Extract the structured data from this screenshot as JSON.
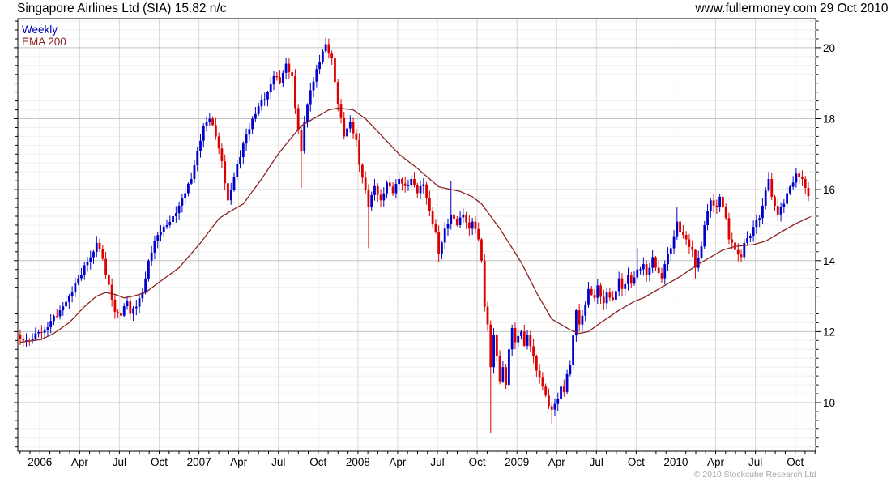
{
  "header": {
    "title": "Singapore Airlines Ltd (SIA) 15.82 n/c",
    "website": "www.fullermoney.com",
    "date": "29 Oct 2010"
  },
  "legend": [
    {
      "label": "Weekly",
      "color": "#0000bb"
    },
    {
      "label": "EMA 200",
      "color": "#8b2222"
    }
  ],
  "footer": {
    "copyright": "© 2010 Stockcube Research Ltd"
  },
  "chart_data": {
    "type": "candlestick",
    "title": "Singapore Airlines Ltd (SIA)",
    "last_price": 15.82,
    "change": "n/c",
    "frequency": "Weekly",
    "overlay": "EMA 200",
    "as_of": "29 Oct 2010",
    "x_axis": {
      "labels": [
        "2006",
        "Apr",
        "Jul",
        "Oct",
        "2007",
        "Apr",
        "Jul",
        "Oct",
        "2008",
        "Apr",
        "Jul",
        "Oct",
        "2009",
        "Apr",
        "Jul",
        "Oct",
        "2010",
        "Apr",
        "Jul",
        "Oct"
      ],
      "grid_start_week": 6.44,
      "grid_step_weeks": 13.012,
      "minor_ticks_per_quarter": 4
    },
    "y_axis": {
      "ticks": [
        10,
        12,
        14,
        16,
        18,
        20
      ],
      "range": [
        8.63,
        20.82
      ],
      "minor_step": 0.25
    },
    "weeks": 259,
    "close_keypoints": [
      [
        0,
        11.8
      ],
      [
        3,
        11.75
      ],
      [
        5,
        11.95
      ],
      [
        8,
        12.05
      ],
      [
        10,
        12.3
      ],
      [
        13,
        12.6
      ],
      [
        16,
        13.0
      ],
      [
        19,
        13.5
      ],
      [
        22,
        13.95
      ],
      [
        24,
        14.25
      ],
      [
        25,
        14.5
      ],
      [
        27,
        14.05
      ],
      [
        28,
        13.6
      ],
      [
        30,
        12.9
      ],
      [
        31,
        12.55
      ],
      [
        33,
        12.45
      ],
      [
        35,
        12.85
      ],
      [
        36,
        12.5
      ],
      [
        38,
        12.7
      ],
      [
        40,
        13.1
      ],
      [
        42,
        14.0
      ],
      [
        44,
        14.55
      ],
      [
        46,
        14.8
      ],
      [
        48,
        15.0
      ],
      [
        50,
        15.25
      ],
      [
        52,
        15.55
      ],
      [
        54,
        15.9
      ],
      [
        56,
        16.3
      ],
      [
        58,
        17.1
      ],
      [
        60,
        17.8
      ],
      [
        62,
        18.0
      ],
      [
        64,
        17.5
      ],
      [
        66,
        16.8
      ],
      [
        68,
        15.7
      ],
      [
        69,
        16.0
      ],
      [
        70,
        16.35
      ],
      [
        73,
        17.3
      ],
      [
        76,
        18.0
      ],
      [
        78,
        18.35
      ],
      [
        81,
        18.75
      ],
      [
        83,
        19.2
      ],
      [
        85,
        19.0
      ],
      [
        87,
        19.55
      ],
      [
        89,
        19.2
      ],
      [
        90,
        18.3
      ],
      [
        92,
        17.1
      ],
      [
        93,
        17.9
      ],
      [
        95,
        18.8
      ],
      [
        97,
        19.4
      ],
      [
        99,
        19.9
      ],
      [
        100,
        20.1
      ],
      [
        102,
        19.7
      ],
      [
        104,
        18.4
      ],
      [
        106,
        17.5
      ],
      [
        108,
        17.9
      ],
      [
        110,
        17.4
      ],
      [
        111,
        16.7
      ],
      [
        113,
        16.0
      ],
      [
        114,
        15.5
      ],
      [
        116,
        16.1
      ],
      [
        118,
        15.7
      ],
      [
        120,
        16.2
      ],
      [
        122,
        15.9
      ],
      [
        124,
        16.3
      ],
      [
        126,
        16.1
      ],
      [
        128,
        16.3
      ],
      [
        130,
        15.9
      ],
      [
        132,
        16.15
      ],
      [
        134,
        15.4
      ],
      [
        136,
        14.8
      ],
      [
        137,
        14.2
      ],
      [
        139,
        14.9
      ],
      [
        141,
        15.3
      ],
      [
        143,
        15.0
      ],
      [
        145,
        15.3
      ],
      [
        147,
        14.9
      ],
      [
        148,
        15.1
      ],
      [
        150,
        14.6
      ],
      [
        151,
        14.0
      ],
      [
        152,
        12.7
      ],
      [
        153,
        12.2
      ],
      [
        154,
        11.0
      ],
      [
        155,
        11.9
      ],
      [
        156,
        11.3
      ],
      [
        157,
        10.6
      ],
      [
        158,
        11.0
      ],
      [
        159,
        10.5
      ],
      [
        160,
        11.5
      ],
      [
        161,
        12.1
      ],
      [
        162,
        11.7
      ],
      [
        164,
        12.0
      ],
      [
        165,
        11.6
      ],
      [
        166,
        11.9
      ],
      [
        168,
        11.3
      ],
      [
        169,
        10.9
      ],
      [
        170,
        10.7
      ],
      [
        172,
        10.2
      ],
      [
        173,
        9.9
      ],
      [
        174,
        9.8
      ],
      [
        176,
        10.1
      ],
      [
        177,
        10.45
      ],
      [
        178,
        10.3
      ],
      [
        179,
        10.8
      ],
      [
        180,
        11.05
      ],
      [
        182,
        12.6
      ],
      [
        183,
        12.2
      ],
      [
        184,
        12.45
      ],
      [
        186,
        13.2
      ],
      [
        188,
        12.95
      ],
      [
        189,
        13.3
      ],
      [
        191,
        12.8
      ],
      [
        192,
        13.1
      ],
      [
        194,
        12.9
      ],
      [
        196,
        13.5
      ],
      [
        197,
        13.2
      ],
      [
        199,
        13.6
      ],
      [
        200,
        13.35
      ],
      [
        202,
        13.75
      ],
      [
        204,
        13.9
      ],
      [
        205,
        13.6
      ],
      [
        207,
        14.1
      ],
      [
        208,
        13.8
      ],
      [
        210,
        13.5
      ],
      [
        211,
        13.9
      ],
      [
        213,
        14.35
      ],
      [
        215,
        15.1
      ],
      [
        216,
        14.8
      ],
      [
        218,
        14.6
      ],
      [
        220,
        14.3
      ],
      [
        221,
        13.8
      ],
      [
        223,
        14.4
      ],
      [
        224,
        15.0
      ],
      [
        226,
        15.7
      ],
      [
        228,
        15.5
      ],
      [
        229,
        15.8
      ],
      [
        231,
        15.2
      ],
      [
        232,
        14.6
      ],
      [
        234,
        14.3
      ],
      [
        236,
        14.1
      ],
      [
        237,
        14.5
      ],
      [
        239,
        14.7
      ],
      [
        240,
        14.95
      ],
      [
        242,
        15.2
      ],
      [
        243,
        15.55
      ],
      [
        245,
        16.3
      ],
      [
        246,
        15.8
      ],
      [
        248,
        15.3
      ],
      [
        250,
        15.6
      ],
      [
        251,
        15.9
      ],
      [
        253,
        16.2
      ],
      [
        254,
        16.45
      ],
      [
        256,
        16.3
      ],
      [
        257,
        16.05
      ],
      [
        258,
        15.82
      ]
    ],
    "wick_overrides": {
      "high": [
        [
          62,
          18.15
        ],
        [
          100,
          20.25
        ],
        [
          141,
          16.25
        ],
        [
          202,
          14.35
        ],
        [
          215,
          15.5
        ],
        [
          245,
          16.5
        ]
      ],
      "low": [
        [
          68,
          15.3
        ],
        [
          92,
          16.05
        ],
        [
          114,
          14.35
        ],
        [
          137,
          13.97
        ],
        [
          154,
          9.15
        ],
        [
          174,
          9.4
        ],
        [
          221,
          13.5
        ],
        [
          236,
          13.95
        ]
      ]
    },
    "ema_keypoints": [
      [
        0,
        11.7
      ],
      [
        7,
        11.78
      ],
      [
        11,
        11.95
      ],
      [
        16,
        12.25
      ],
      [
        21,
        12.7
      ],
      [
        25,
        13.0
      ],
      [
        28,
        13.1
      ],
      [
        31,
        13.05
      ],
      [
        34,
        12.95
      ],
      [
        37,
        13.0
      ],
      [
        41,
        13.1
      ],
      [
        45,
        13.36
      ],
      [
        52,
        13.8
      ],
      [
        59,
        14.5
      ],
      [
        65,
        15.18
      ],
      [
        68,
        15.35
      ],
      [
        73,
        15.6
      ],
      [
        79,
        16.3
      ],
      [
        84,
        16.95
      ],
      [
        87,
        17.28
      ],
      [
        92,
        17.8
      ],
      [
        98,
        18.1
      ],
      [
        101,
        18.25
      ],
      [
        104,
        18.3
      ],
      [
        109,
        18.25
      ],
      [
        113,
        18.0
      ],
      [
        118,
        17.55
      ],
      [
        124,
        17.0
      ],
      [
        130,
        16.6
      ],
      [
        137,
        16.08
      ],
      [
        144,
        15.95
      ],
      [
        148,
        15.8
      ],
      [
        151,
        15.6
      ],
      [
        157,
        14.9
      ],
      [
        164,
        13.95
      ],
      [
        169,
        13.1
      ],
      [
        174,
        12.35
      ],
      [
        180,
        12.05
      ],
      [
        183,
        11.95
      ],
      [
        186,
        12.0
      ],
      [
        190,
        12.25
      ],
      [
        196,
        12.6
      ],
      [
        201,
        12.85
      ],
      [
        204,
        12.95
      ],
      [
        209,
        13.2
      ],
      [
        216,
        13.55
      ],
      [
        222,
        13.9
      ],
      [
        230,
        14.3
      ],
      [
        234,
        14.4
      ],
      [
        240,
        14.45
      ],
      [
        244,
        14.55
      ],
      [
        250,
        14.85
      ],
      [
        254,
        15.05
      ],
      [
        259,
        15.25
      ]
    ],
    "colors": {
      "up": "#0000cc",
      "down": "#dd0000",
      "ema": "#8b2222",
      "grid_major": "#c3c3c3",
      "grid_minor": "#f0f0f0",
      "grid_vertical": "#d8d8d8",
      "axis": "#000000",
      "labels": "#000000",
      "copyright": "#a8a8a8"
    }
  }
}
